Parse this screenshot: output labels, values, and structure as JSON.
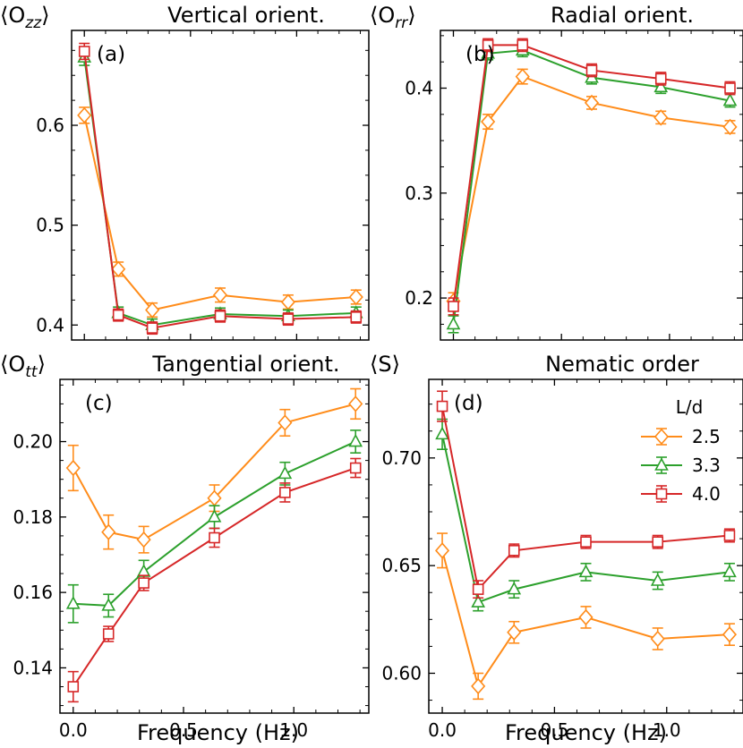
{
  "chart_data": [
    {
      "type": "line",
      "panel_label": "(a)",
      "title": "Vertical orient.",
      "ylabel": "⟨O_zz⟩",
      "ylabel_base": "⟨O",
      "ylabel_sub": "zz",
      "ylabel_end": "⟩",
      "xlabel": "",
      "x": [
        0.0,
        0.16,
        0.32,
        0.64,
        0.96,
        1.28
      ],
      "xlim": [
        -0.06,
        1.34
      ],
      "ylim": [
        0.385,
        0.695
      ],
      "yticks": [
        0.4,
        0.5,
        0.6
      ],
      "ytick_labels": [
        "0.4",
        "0.5",
        "0.6"
      ],
      "xticks": [
        0.0,
        0.5,
        1.0
      ],
      "xtick_labels": [],
      "series": [
        {
          "name": "2.5",
          "color": "#ff8c1a",
          "marker": "diamond",
          "values": [
            0.61,
            0.456,
            0.415,
            0.43,
            0.423,
            0.428
          ],
          "errors": [
            0.008,
            0.007,
            0.007,
            0.007,
            0.007,
            0.007
          ]
        },
        {
          "name": "3.3",
          "color": "#2ca02c",
          "marker": "triangle",
          "values": [
            0.668,
            0.412,
            0.4,
            0.411,
            0.409,
            0.412
          ],
          "errors": [
            0.008,
            0.006,
            0.006,
            0.006,
            0.006,
            0.006
          ]
        },
        {
          "name": "4.0",
          "color": "#d62728",
          "marker": "square",
          "values": [
            0.674,
            0.41,
            0.397,
            0.409,
            0.406,
            0.408
          ],
          "errors": [
            0.008,
            0.006,
            0.006,
            0.006,
            0.006,
            0.006
          ]
        }
      ]
    },
    {
      "type": "line",
      "panel_label": "(b)",
      "title": "Radial orient.",
      "ylabel": "⟨O_rr⟩",
      "ylabel_base": "⟨O",
      "ylabel_sub": "rr",
      "ylabel_end": "⟩",
      "xlabel": "",
      "x": [
        0.0,
        0.16,
        0.32,
        0.64,
        0.96,
        1.28
      ],
      "xlim": [
        -0.06,
        1.34
      ],
      "ylim": [
        0.16,
        0.455
      ],
      "yticks": [
        0.2,
        0.3,
        0.4
      ],
      "ytick_labels": [
        "0.2",
        "0.3",
        "0.4"
      ],
      "xticks": [
        0.0,
        0.5,
        1.0
      ],
      "xtick_labels": [],
      "series": [
        {
          "name": "2.5",
          "color": "#ff8c1a",
          "marker": "diamond",
          "values": [
            0.197,
            0.368,
            0.411,
            0.386,
            0.372,
            0.363
          ],
          "errors": [
            0.008,
            0.007,
            0.007,
            0.006,
            0.006,
            0.006
          ]
        },
        {
          "name": "3.3",
          "color": "#2ca02c",
          "marker": "triangle",
          "values": [
            0.175,
            0.433,
            0.436,
            0.41,
            0.401,
            0.388
          ],
          "errors": [
            0.008,
            0.006,
            0.006,
            0.006,
            0.006,
            0.006
          ]
        },
        {
          "name": "4.0",
          "color": "#d62728",
          "marker": "square",
          "values": [
            0.192,
            0.441,
            0.441,
            0.417,
            0.409,
            0.4
          ],
          "errors": [
            0.008,
            0.006,
            0.006,
            0.006,
            0.006,
            0.006
          ]
        }
      ]
    },
    {
      "type": "line",
      "panel_label": "(c)",
      "title": "Tangential orient.",
      "ylabel": "⟨O_tt⟩",
      "ylabel_base": "⟨O",
      "ylabel_sub": "tt",
      "ylabel_end": "⟩",
      "xlabel": "Frequency (Hz)",
      "x": [
        0.0,
        0.16,
        0.32,
        0.64,
        0.96,
        1.28
      ],
      "xlim": [
        -0.06,
        1.34
      ],
      "ylim": [
        0.128,
        0.2165
      ],
      "yticks": [
        0.14,
        0.16,
        0.18,
        0.2
      ],
      "ytick_labels": [
        "0.14",
        "0.16",
        "0.18",
        "0.20"
      ],
      "xticks": [
        0.0,
        0.5,
        1.0
      ],
      "xtick_labels": [
        "0.0",
        "0.5",
        "1.0"
      ],
      "series": [
        {
          "name": "2.5",
          "color": "#ff8c1a",
          "marker": "diamond",
          "values": [
            0.193,
            0.176,
            0.174,
            0.185,
            0.205,
            0.21
          ],
          "errors": [
            0.006,
            0.0045,
            0.0035,
            0.0035,
            0.0035,
            0.004
          ]
        },
        {
          "name": "3.3",
          "color": "#2ca02c",
          "marker": "triangle",
          "values": [
            0.157,
            0.1565,
            0.1655,
            0.18,
            0.1915,
            0.2
          ],
          "errors": [
            0.005,
            0.003,
            0.003,
            0.003,
            0.003,
            0.003
          ]
        },
        {
          "name": "4.0",
          "color": "#d62728",
          "marker": "square",
          "values": [
            0.135,
            0.149,
            0.1625,
            0.1745,
            0.1865,
            0.193
          ],
          "errors": [
            0.004,
            0.002,
            0.002,
            0.0025,
            0.0025,
            0.0025
          ]
        }
      ]
    },
    {
      "type": "line",
      "panel_label": "(d)",
      "title": "Nematic order",
      "ylabel": "⟨S⟩",
      "ylabel_base": "⟨S",
      "ylabel_sub": "",
      "ylabel_end": "⟩",
      "xlabel": "Frequency (Hz)",
      "x": [
        0.0,
        0.16,
        0.32,
        0.64,
        0.96,
        1.28
      ],
      "xlim": [
        -0.06,
        1.34
      ],
      "ylim": [
        0.5815,
        0.7365
      ],
      "yticks": [
        0.6,
        0.65,
        0.7
      ],
      "ytick_labels": [
        "0.60",
        "0.65",
        "0.70"
      ],
      "xticks": [
        0.0,
        0.5,
        1.0
      ],
      "xtick_labels": [
        "0.0",
        "0.5",
        "1.0"
      ],
      "legend": {
        "title": "L/d",
        "entries": [
          "2.5",
          "3.3",
          "4.0"
        ],
        "placement": "upper-right"
      },
      "series": [
        {
          "name": "2.5",
          "color": "#ff8c1a",
          "marker": "diamond",
          "values": [
            0.657,
            0.594,
            0.619,
            0.626,
            0.616,
            0.618
          ],
          "errors": [
            0.008,
            0.006,
            0.005,
            0.005,
            0.005,
            0.005
          ]
        },
        {
          "name": "3.3",
          "color": "#2ca02c",
          "marker": "triangle",
          "values": [
            0.711,
            0.633,
            0.639,
            0.647,
            0.643,
            0.647
          ],
          "errors": [
            0.007,
            0.004,
            0.004,
            0.004,
            0.004,
            0.004
          ]
        },
        {
          "name": "4.0",
          "color": "#d62728",
          "marker": "square",
          "values": [
            0.724,
            0.639,
            0.657,
            0.661,
            0.661,
            0.664
          ],
          "errors": [
            0.007,
            0.004,
            0.003,
            0.003,
            0.003,
            0.003
          ]
        }
      ]
    }
  ]
}
